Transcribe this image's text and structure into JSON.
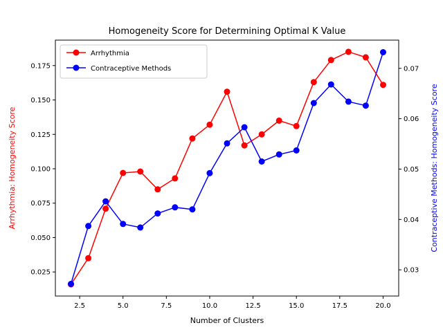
{
  "chart_data": {
    "type": "line",
    "title": "Homogeneity Score for Determining Optimal K Value",
    "xlabel": "Number of Clusters",
    "xlim": [
      1.1,
      20.9
    ],
    "xticks": [
      2.5,
      5.0,
      7.5,
      10.0,
      12.5,
      15.0,
      17.5,
      20.0
    ],
    "xtick_labels": [
      "2.5",
      "5.0",
      "7.5",
      "10.0",
      "12.5",
      "15.0",
      "17.5",
      "20.0"
    ],
    "x": [
      2,
      3,
      4,
      5,
      6,
      7,
      8,
      9,
      10,
      11,
      12,
      13,
      14,
      15,
      16,
      17,
      18,
      19,
      20
    ],
    "grid": false,
    "legend_position": "top-left",
    "series": [
      {
        "name": "Arrhythmia",
        "axis": "left",
        "color": "#ff0000",
        "ylabel": "Arrhythmia: Homogeneity Score",
        "ylim": [
          0.0075,
          0.1935
        ],
        "yticks": [
          0.025,
          0.05,
          0.075,
          0.1,
          0.125,
          0.15,
          0.175
        ],
        "ytick_labels": [
          "0.025",
          "0.050",
          "0.075",
          "0.100",
          "0.125",
          "0.150",
          "0.175"
        ],
        "values": [
          0.016,
          0.035,
          0.071,
          0.097,
          0.098,
          0.085,
          0.093,
          0.122,
          0.132,
          0.156,
          0.117,
          0.125,
          0.135,
          0.131,
          0.163,
          0.179,
          0.185,
          0.181,
          0.161
        ]
      },
      {
        "name": "Contraceptive Methods",
        "axis": "right",
        "color": "#0000ff",
        "ylabel": "Contraceptive Methods: Homogeneity Score",
        "ylim": [
          0.0248,
          0.0756
        ],
        "yticks": [
          0.03,
          0.04,
          0.05,
          0.06,
          0.07
        ],
        "ytick_labels": [
          "0.03",
          "0.04",
          "0.05",
          "0.06",
          "0.07"
        ],
        "values": [
          0.0272,
          0.0387,
          0.0436,
          0.0391,
          0.0384,
          0.0412,
          0.0424,
          0.042,
          0.0492,
          0.0551,
          0.0583,
          0.0515,
          0.0529,
          0.0537,
          0.0631,
          0.0668,
          0.0634,
          0.0626,
          0.0732
        ]
      }
    ]
  }
}
